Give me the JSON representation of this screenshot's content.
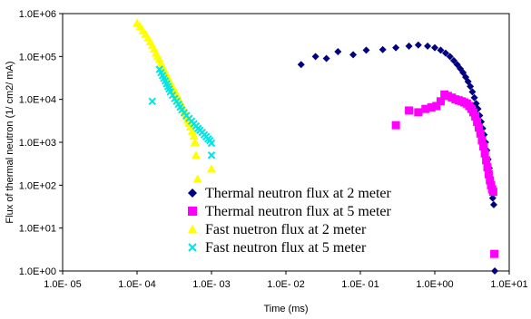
{
  "chart_data": {
    "type": "scatter",
    "xlabel": "Time (ms)",
    "ylabel": "Flux of thermal neutron (1/ cm2/ mA)",
    "xscale": "log",
    "yscale": "log",
    "xlim": [
      1e-05,
      10
    ],
    "ylim": [
      1,
      1000000
    ],
    "x_ticks": [
      {
        "value": 1e-05,
        "label": "1.0E- 05"
      },
      {
        "value": 0.0001,
        "label": "1.0E- 04"
      },
      {
        "value": 0.001,
        "label": "1.0E- 03"
      },
      {
        "value": 0.01,
        "label": "1.0E- 02"
      },
      {
        "value": 0.1,
        "label": "1.0E- 01"
      },
      {
        "value": 1,
        "label": "1.0E+00"
      },
      {
        "value": 10,
        "label": "1.0E+01"
      }
    ],
    "y_ticks": [
      {
        "value": 1,
        "label": "1.0E+00"
      },
      {
        "value": 10,
        "label": "1.0E+01"
      },
      {
        "value": 100,
        "label": "1.0E+02"
      },
      {
        "value": 1000,
        "label": "1.0E+03"
      },
      {
        "value": 10000,
        "label": "1.0E+04"
      },
      {
        "value": 100000,
        "label": "1.0E+05"
      },
      {
        "value": 1000000,
        "label": "1.0E+06"
      }
    ],
    "grid": false,
    "legend_position": "bottom-right",
    "series": [
      {
        "name": "Thermal neutron flux at 2 meter",
        "marker": "diamond",
        "color": "#000080",
        "points": [
          [
            0.016,
            65000
          ],
          [
            0.025,
            100000
          ],
          [
            0.035,
            90000
          ],
          [
            0.05,
            130000
          ],
          [
            0.08,
            110000
          ],
          [
            0.12,
            140000
          ],
          [
            0.2,
            145000
          ],
          [
            0.3,
            160000
          ],
          [
            0.45,
            175000
          ],
          [
            0.6,
            185000
          ],
          [
            0.8,
            175000
          ],
          [
            1.0,
            160000
          ],
          [
            1.2,
            140000
          ],
          [
            1.4,
            120000
          ],
          [
            1.6,
            100000
          ],
          [
            1.8,
            80000
          ],
          [
            2.0,
            65000
          ],
          [
            2.2,
            52000
          ],
          [
            2.4,
            42000
          ],
          [
            2.6,
            33000
          ],
          [
            2.8,
            26000
          ],
          [
            3.0,
            20000
          ],
          [
            3.2,
            15000
          ],
          [
            3.4,
            11000
          ],
          [
            3.6,
            8000
          ],
          [
            3.8,
            6000
          ],
          [
            4.0,
            4200
          ],
          [
            4.2,
            3000
          ],
          [
            4.4,
            2100
          ],
          [
            4.6,
            1500
          ],
          [
            4.8,
            1000
          ],
          [
            5.0,
            650
          ],
          [
            5.2,
            400
          ],
          [
            5.4,
            250
          ],
          [
            5.6,
            150
          ],
          [
            5.8,
            80
          ],
          [
            6.0,
            50
          ],
          [
            6.2,
            35
          ],
          [
            6.4,
            1
          ]
        ]
      },
      {
        "name": "Thermal neutron flux at 5 meter",
        "marker": "square",
        "color": "#ff00ff",
        "points": [
          [
            0.3,
            2500
          ],
          [
            0.45,
            5500
          ],
          [
            0.6,
            5000
          ],
          [
            0.75,
            6000
          ],
          [
            0.9,
            6500
          ],
          [
            1.05,
            7000
          ],
          [
            1.2,
            9000
          ],
          [
            1.35,
            13000
          ],
          [
            1.5,
            12000
          ],
          [
            1.7,
            11000
          ],
          [
            1.9,
            10000
          ],
          [
            2.1,
            9500
          ],
          [
            2.3,
            9000
          ],
          [
            2.5,
            8500
          ],
          [
            2.7,
            8000
          ],
          [
            2.9,
            7000
          ],
          [
            3.1,
            6000
          ],
          [
            3.3,
            5000
          ],
          [
            3.5,
            4000
          ],
          [
            3.7,
            3000
          ],
          [
            3.9,
            2200
          ],
          [
            4.1,
            1600
          ],
          [
            4.3,
            1100
          ],
          [
            4.5,
            800
          ],
          [
            4.7,
            550
          ],
          [
            4.9,
            380
          ],
          [
            5.1,
            260
          ],
          [
            5.3,
            180
          ],
          [
            5.5,
            130
          ],
          [
            5.7,
            100
          ],
          [
            5.9,
            80
          ],
          [
            6.1,
            70
          ],
          [
            6.3,
            2.5
          ]
        ]
      },
      {
        "name": "Fast nuetron flux at 2 meter",
        "marker": "triangle",
        "color": "#ffff00",
        "points": [
          [
            0.0001,
            600000
          ],
          [
            0.00011,
            500000
          ],
          [
            0.00012,
            400000
          ],
          [
            0.00013,
            330000
          ],
          [
            0.00014,
            270000
          ],
          [
            0.00015,
            220000
          ],
          [
            0.00016,
            180000
          ],
          [
            0.00017,
            150000
          ],
          [
            0.00018,
            120000
          ],
          [
            0.00019,
            100000
          ],
          [
            0.0002,
            85000
          ],
          [
            0.00021,
            70000
          ],
          [
            0.00022,
            60000
          ],
          [
            0.00023,
            50000
          ],
          [
            0.00024,
            43000
          ],
          [
            0.00025,
            37000
          ],
          [
            0.00026,
            32000
          ],
          [
            0.00027,
            27000
          ],
          [
            0.00028,
            24000
          ],
          [
            0.0003,
            20000
          ],
          [
            0.00032,
            16000
          ],
          [
            0.00034,
            13000
          ],
          [
            0.00036,
            10500
          ],
          [
            0.00038,
            8500
          ],
          [
            0.0004,
            7000
          ],
          [
            0.00042,
            5800
          ],
          [
            0.00044,
            4800
          ],
          [
            0.00046,
            4000
          ],
          [
            0.00048,
            3300
          ],
          [
            0.0005,
            2800
          ],
          [
            0.00052,
            2300
          ],
          [
            0.00055,
            1800
          ],
          [
            0.00058,
            1400
          ],
          [
            0.0006,
            1000
          ],
          [
            0.00062,
            500
          ],
          [
            0.00065,
            140
          ],
          [
            0.001,
            240
          ]
        ]
      },
      {
        "name": "Fast neutron flux at 5 meter",
        "marker": "x",
        "color": "#00e5e5",
        "points": [
          [
            0.00016,
            9000
          ],
          [
            0.0002,
            50000
          ],
          [
            0.00021,
            42000
          ],
          [
            0.00022,
            36000
          ],
          [
            0.00023,
            31000
          ],
          [
            0.00024,
            27000
          ],
          [
            0.00025,
            23000
          ],
          [
            0.00026,
            20000
          ],
          [
            0.00027,
            17500
          ],
          [
            0.00028,
            15000
          ],
          [
            0.0003,
            12500
          ],
          [
            0.00032,
            10500
          ],
          [
            0.00034,
            9000
          ],
          [
            0.00036,
            7700
          ],
          [
            0.00038,
            6600
          ],
          [
            0.0004,
            5700
          ],
          [
            0.00043,
            4900
          ],
          [
            0.00046,
            4200
          ],
          [
            0.0005,
            3600
          ],
          [
            0.00054,
            3100
          ],
          [
            0.00058,
            2700
          ],
          [
            0.00062,
            2400
          ],
          [
            0.00066,
            2100
          ],
          [
            0.0007,
            1900
          ],
          [
            0.00075,
            1700
          ],
          [
            0.0008,
            1500
          ],
          [
            0.00085,
            1350
          ],
          [
            0.0009,
            1200
          ],
          [
            0.00095,
            1100
          ],
          [
            0.001,
            950
          ],
          [
            0.001,
            500
          ]
        ]
      }
    ]
  }
}
